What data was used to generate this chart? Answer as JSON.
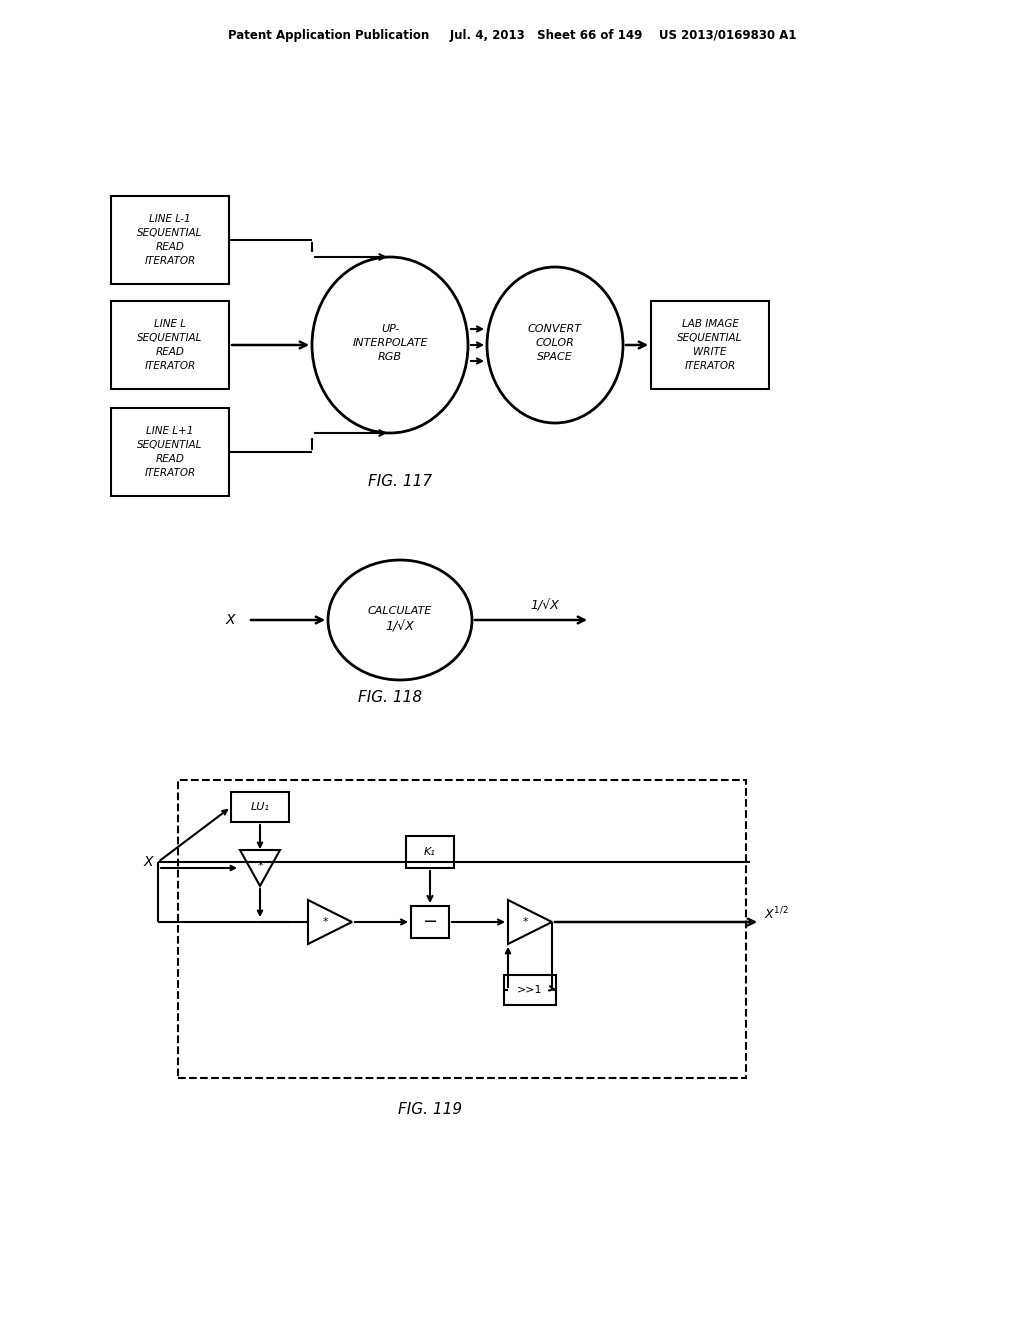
{
  "bg_color": "#ffffff",
  "header": "Patent Application Publication     Jul. 4, 2013   Sheet 66 of 149    US 2013/0169830 A1",
  "fig117_label": "FIG. 117",
  "fig118_label": "FIG. 118",
  "fig119_label": "FIG. 119"
}
